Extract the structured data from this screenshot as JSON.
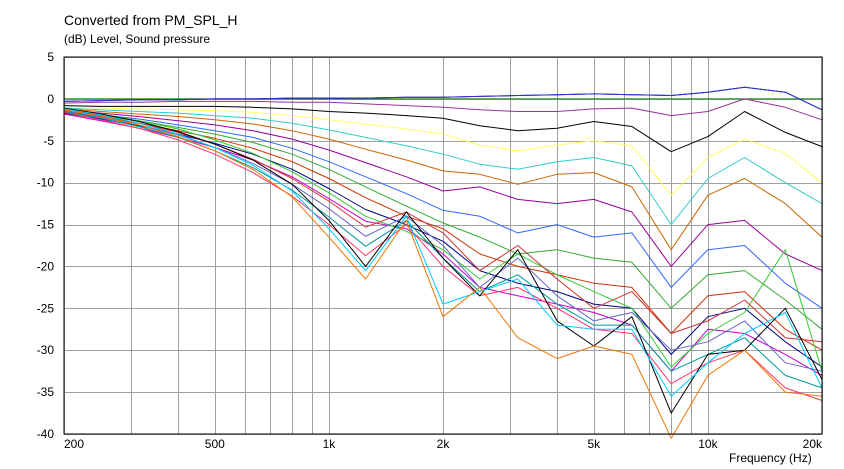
{
  "title": "Converted from PM_SPL_H",
  "subtitle": "(dB)  Level, Sound pressure",
  "chart_data": {
    "type": "line",
    "title": "Converted from PM_SPL_H",
    "ylabel": "(dB)  Level, Sound pressure",
    "xlabel": "Frequency  (Hz)",
    "x_scale": "log",
    "xlim": [
      200,
      20000
    ],
    "ylim": [
      -40,
      5
    ],
    "grid": true,
    "legend": "none",
    "x_ticks": [
      {
        "value": 200,
        "label": "200"
      },
      {
        "value": 500,
        "label": "500"
      },
      {
        "value": 1000,
        "label": "1k"
      },
      {
        "value": 2000,
        "label": "2k"
      },
      {
        "value": 5000,
        "label": "5k"
      },
      {
        "value": 10000,
        "label": "10k"
      },
      {
        "value": 20000,
        "label": "20k"
      }
    ],
    "y_ticks": [
      {
        "value": 5,
        "label": "5"
      },
      {
        "value": 0,
        "label": "0"
      },
      {
        "value": -5,
        "label": "-5"
      },
      {
        "value": -10,
        "label": "-10"
      },
      {
        "value": -15,
        "label": "-15"
      },
      {
        "value": -20,
        "label": "-20"
      },
      {
        "value": -25,
        "label": "-25"
      },
      {
        "value": -30,
        "label": "-30"
      },
      {
        "value": -35,
        "label": "-35"
      },
      {
        "value": -40,
        "label": "-40"
      }
    ],
    "x": [
      200,
      250,
      315,
      400,
      500,
      630,
      800,
      1000,
      1250,
      1600,
      2000,
      2500,
      3150,
      4000,
      5000,
      6300,
      8000,
      10000,
      12500,
      16000,
      20000
    ],
    "series": [
      {
        "color": "#008000",
        "values": [
          0,
          0,
          0,
          0,
          0,
          0,
          0,
          0,
          0,
          0,
          0,
          0,
          0,
          0,
          0,
          0,
          0,
          0,
          0,
          0,
          0
        ]
      },
      {
        "color": "#000080",
        "values": [
          -0.3,
          -0.2,
          -0.1,
          -0.1,
          0,
          0,
          0.1,
          0.1,
          0.1,
          0.2,
          0.2,
          0.3,
          0.4,
          0.5,
          0.6,
          0.5,
          0.4,
          0.8,
          1.4,
          0.8,
          -1.3
        ]
      },
      {
        "color": "#3333cc",
        "values": [
          -0.3,
          -0.2,
          -0.1,
          -0.1,
          0,
          0,
          0.1,
          0.1,
          0.1,
          0.2,
          0.2,
          0.3,
          0.4,
          0.5,
          0.6,
          0.5,
          0.4,
          0.8,
          1.4,
          0.8,
          -1.3
        ]
      },
      {
        "color": "#993399",
        "values": [
          -0.5,
          -0.4,
          -0.4,
          -0.3,
          -0.3,
          -0.3,
          -0.4,
          -0.4,
          -0.6,
          -0.8,
          -1.0,
          -1.3,
          -1.5,
          -1.5,
          -1.2,
          -1.1,
          -2.0,
          -1.5,
          0.0,
          -1.0,
          -2.5
        ]
      },
      {
        "color": "#000000",
        "values": [
          -0.8,
          -0.9,
          -0.9,
          -0.9,
          -0.9,
          -1.0,
          -1.2,
          -1.5,
          -1.7,
          -2.0,
          -2.3,
          -3.2,
          -3.8,
          -3.5,
          -2.7,
          -3.3,
          -6.3,
          -4.5,
          -1.5,
          -4.0,
          -5.7
        ]
      },
      {
        "color": "#ffff66",
        "values": [
          -1.0,
          -1.1,
          -1.2,
          -1.3,
          -1.4,
          -1.6,
          -2.0,
          -2.5,
          -3.0,
          -3.6,
          -4.2,
          -5.5,
          -6.2,
          -5.5,
          -5.0,
          -5.6,
          -11.5,
          -7.0,
          -4.8,
          -6.5,
          -10.0
        ]
      },
      {
        "color": "#33cccc",
        "values": [
          -1.1,
          -1.3,
          -1.5,
          -1.7,
          -2.0,
          -2.3,
          -2.9,
          -3.7,
          -4.6,
          -5.6,
          -6.6,
          -7.8,
          -8.4,
          -7.5,
          -7.0,
          -8.0,
          -15.0,
          -9.5,
          -7.0,
          -10.0,
          -12.5
        ]
      },
      {
        "color": "#cc6600",
        "values": [
          -1.2,
          -1.5,
          -1.8,
          -2.1,
          -2.5,
          -3.0,
          -3.8,
          -4.8,
          -6.0,
          -7.3,
          -8.6,
          -9.0,
          -10.2,
          -9.0,
          -8.8,
          -10.5,
          -18.0,
          -11.5,
          -9.5,
          -12.5,
          -16.5
        ]
      },
      {
        "color": "#990099",
        "values": [
          -1.3,
          -1.7,
          -2.1,
          -2.6,
          -3.1,
          -3.8,
          -4.8,
          -6.1,
          -7.6,
          -9.3,
          -11.0,
          -10.5,
          -12.0,
          -12.5,
          -12.0,
          -13.5,
          -20.0,
          -15.0,
          -14.5,
          -18.5,
          -20.5
        ]
      },
      {
        "color": "#3366ff",
        "values": [
          -1.4,
          -1.9,
          -2.4,
          -3.1,
          -3.8,
          -4.6,
          -5.9,
          -7.5,
          -9.3,
          -11.3,
          -13.3,
          -14.0,
          -16.0,
          -15.0,
          -16.5,
          -16.0,
          -22.5,
          -18.0,
          -17.5,
          -22.0,
          -25.0
        ]
      },
      {
        "color": "#33aa33",
        "values": [
          -1.5,
          -2.0,
          -2.6,
          -3.4,
          -4.2,
          -5.2,
          -6.6,
          -8.4,
          -10.5,
          -12.8,
          -14.8,
          -16.5,
          -18.5,
          -18.0,
          -19.0,
          -19.5,
          -25.0,
          -21.0,
          -20.5,
          -24.0,
          -27.5
        ]
      },
      {
        "color": "#cc3300",
        "values": [
          -1.6,
          -2.2,
          -2.9,
          -3.8,
          -4.7,
          -5.9,
          -7.5,
          -9.5,
          -11.8,
          -14.0,
          -15.5,
          -18.5,
          -20.0,
          -21.0,
          -22.0,
          -22.5,
          -28.0,
          -23.5,
          -23.0,
          -27.5,
          -30.0
        ]
      },
      {
        "color": "#000080",
        "values": [
          -1.7,
          -2.4,
          -3.2,
          -4.2,
          -5.3,
          -6.6,
          -8.4,
          -10.7,
          -13.2,
          -15.0,
          -17.0,
          -20.5,
          -22.0,
          -23.0,
          -24.5,
          -25.0,
          -30.5,
          -26.0,
          -25.0,
          -29.0,
          -32.0
        ]
      },
      {
        "color": "#cc00cc",
        "values": [
          -1.8,
          -2.6,
          -3.5,
          -4.6,
          -5.8,
          -7.3,
          -9.3,
          -11.9,
          -14.6,
          -15.5,
          -18.5,
          -22.5,
          -23.5,
          -24.5,
          -25.5,
          -27.0,
          -32.5,
          -27.5,
          -28.0,
          -30.5,
          -33.0
        ]
      },
      {
        "color": "#33cc33",
        "values": [
          -1.2,
          -1.8,
          -2.6,
          -3.6,
          -4.9,
          -6.5,
          -8.7,
          -11.2,
          -14.0,
          -15.8,
          -18.0,
          -21.5,
          -18.5,
          -21.0,
          -23.0,
          -25.0,
          -32.0,
          -28.0,
          -25.5,
          -18.0,
          -32.5
        ]
      },
      {
        "color": "#cc3333",
        "values": [
          -1.3,
          -2.0,
          -2.9,
          -4.0,
          -5.4,
          -7.2,
          -9.5,
          -12.2,
          -15.3,
          -13.5,
          -16.0,
          -20.5,
          -17.5,
          -21.5,
          -25.0,
          -23.0,
          -28.0,
          -26.5,
          -24.0,
          -28.5,
          -29.0
        ]
      },
      {
        "color": "#6666cc",
        "values": [
          -1.4,
          -2.2,
          -3.1,
          -4.3,
          -5.8,
          -7.7,
          -10.2,
          -13.1,
          -16.4,
          -14.0,
          -17.5,
          -22.5,
          -19.0,
          -23.5,
          -26.5,
          -25.5,
          -30.0,
          -29.0,
          -26.5,
          -31.5,
          -32.5
        ]
      },
      {
        "color": "#009999",
        "values": [
          -1.5,
          -2.3,
          -3.3,
          -4.6,
          -6.2,
          -8.2,
          -10.9,
          -14.1,
          -17.6,
          -14.5,
          -19.0,
          -23.0,
          -21.0,
          -24.5,
          -27.0,
          -27.0,
          -32.5,
          -30.5,
          -28.5,
          -33.0,
          -34.5
        ]
      },
      {
        "color": "#ff3366",
        "values": [
          -1.6,
          -2.5,
          -3.5,
          -4.9,
          -6.6,
          -8.8,
          -11.6,
          -15.0,
          -18.7,
          -15.0,
          -20.0,
          -23.5,
          -22.5,
          -25.0,
          -27.5,
          -28.0,
          -34.0,
          -31.5,
          -30.0,
          -34.5,
          -36.0
        ]
      },
      {
        "color": "#000000",
        "values": [
          -1.1,
          -1.8,
          -2.7,
          -3.9,
          -5.4,
          -7.3,
          -10.2,
          -14.5,
          -20.0,
          -13.5,
          -19.0,
          -23.5,
          -18.0,
          -26.5,
          -29.5,
          -26.0,
          -37.5,
          -30.5,
          -30.0,
          -25.0,
          -33.5
        ]
      },
      {
        "color": "#00ccff",
        "values": [
          -1.2,
          -1.9,
          -2.9,
          -4.2,
          -5.8,
          -7.9,
          -11.0,
          -15.5,
          -20.5,
          -14.0,
          -24.5,
          -23.0,
          -21.5,
          -27.0,
          -27.5,
          -27.5,
          -35.5,
          -31.5,
          -28.0,
          -25.5,
          -34.5
        ]
      },
      {
        "color": "#ee7700",
        "values": [
          -1.3,
          -2.1,
          -3.1,
          -4.5,
          -6.2,
          -8.4,
          -11.7,
          -16.5,
          -21.5,
          -14.5,
          -26.0,
          -22.5,
          -28.5,
          -31.0,
          -29.5,
          -30.5,
          -40.5,
          -33.0,
          -30.0,
          -35.0,
          -35.5
        ]
      }
    ]
  }
}
